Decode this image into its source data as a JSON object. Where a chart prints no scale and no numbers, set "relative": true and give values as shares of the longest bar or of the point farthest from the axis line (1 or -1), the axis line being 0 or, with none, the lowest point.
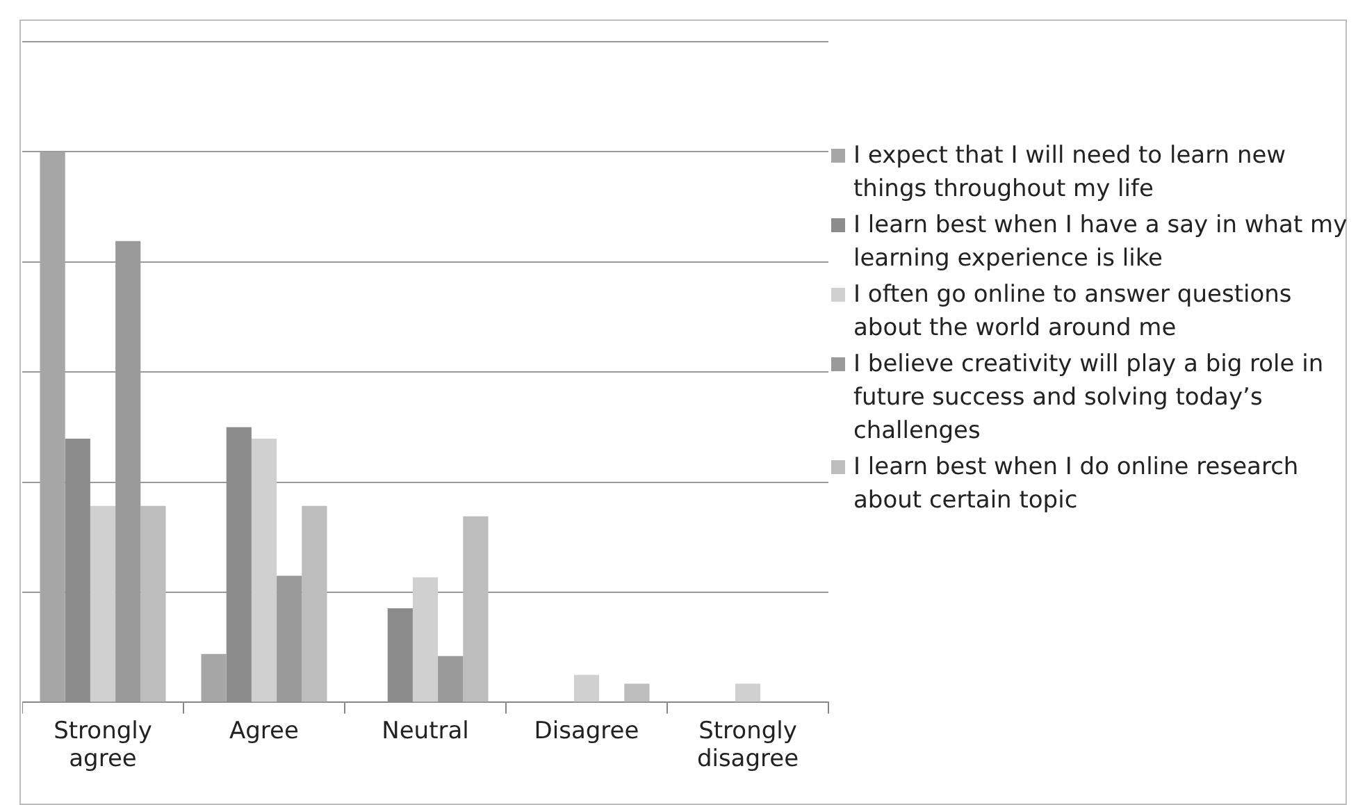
{
  "chart_data": {
    "type": "bar",
    "relative": true,
    "grid": "y",
    "legend": "right",
    "categories": [
      "Strongly agree",
      "Agree",
      "Neutral",
      "Disagree",
      "Strongly disagree"
    ],
    "series": [
      {
        "name": "I expect that I will need to learn new things throughout my life",
        "color": "#a6a6a6",
        "values": [
          1,
          0.088,
          0,
          0,
          0
        ]
      },
      {
        "name": "I learn best when I have a say in what my learning experience is like",
        "color": "#8c8c8c",
        "values": [
          0.479,
          0.5,
          0.171,
          0,
          0
        ]
      },
      {
        "name": "I often go online to answer questions about the world around me",
        "color": "#d0d0d0",
        "values": [
          0.357,
          0.479,
          0.227,
          0.05,
          0.034
        ]
      },
      {
        "name": "I believe creativity will play a big role in future success and solving today’s challenges",
        "color": "#9a9a9a",
        "values": [
          0.838,
          0.23,
          0.084,
          0,
          0
        ]
      },
      {
        "name": "I learn best when I do online research about certain topic",
        "color": "#bdbdbd",
        "values": [
          0.357,
          0.357,
          0.338,
          0.034,
          0
        ]
      }
    ]
  }
}
